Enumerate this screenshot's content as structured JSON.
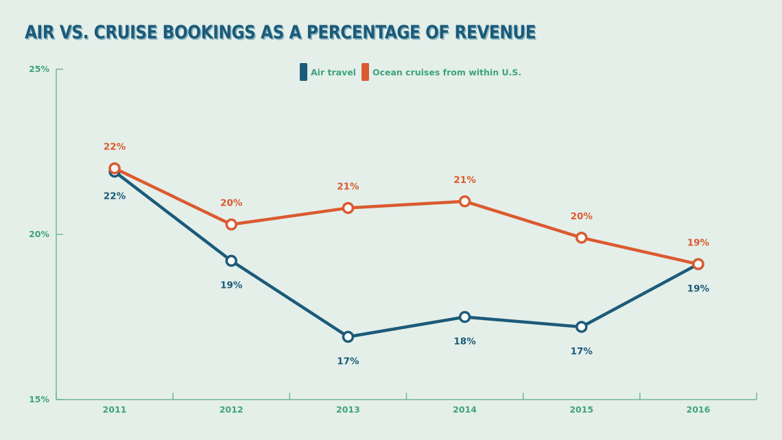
{
  "chart_data": {
    "type": "line",
    "title": "AIR VS. CRUISE BOOKINGS AS A PERCENTAGE OF REVENUE",
    "xlabel": "",
    "ylabel": "",
    "categories": [
      "2011",
      "2012",
      "2013",
      "2014",
      "2015",
      "2016"
    ],
    "ylim": [
      15,
      25
    ],
    "yticks": [
      15,
      20,
      25
    ],
    "ytick_labels": [
      "15%",
      "20%",
      "25%"
    ],
    "grid": false,
    "legend_position": "top-center",
    "series": [
      {
        "name": "Air travel",
        "color": "#1b5a78",
        "values": [
          21.9,
          19.2,
          16.9,
          17.5,
          17.2,
          19.1
        ],
        "labels": [
          "22%",
          "19%",
          "17%",
          "18%",
          "17%",
          "19%"
        ],
        "label_position": "below"
      },
      {
        "name": "Ocean cruises from within U.S.",
        "color": "#db5a30",
        "values": [
          22.0,
          20.3,
          20.8,
          21.0,
          19.9,
          19.1
        ],
        "labels": [
          "22%",
          "20%",
          "21%",
          "21%",
          "20%",
          "19%"
        ],
        "label_position": "above"
      }
    ]
  }
}
